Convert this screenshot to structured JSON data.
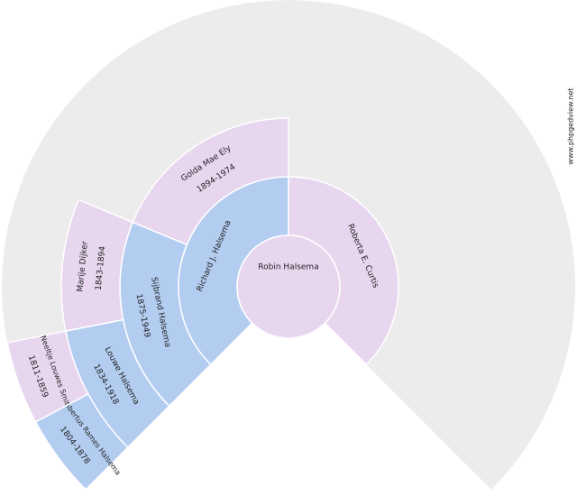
{
  "root": {
    "name": "Robin Halsema"
  },
  "persons": [
    {
      "name": "Richard J. Halsema",
      "dates": null,
      "ring": 1,
      "slot": 0
    },
    {
      "name": "Roberta E. Curtis",
      "dates": null,
      "ring": 1,
      "slot": 1
    },
    {
      "name": "Sijbrand Halsema",
      "dates": "1875-1949",
      "ring": 2,
      "slot": 0
    },
    {
      "name": "Golda Mae Ely",
      "dates": "1894-1974",
      "ring": 2,
      "slot": 1
    },
    {
      "name": "Louwe Halsema",
      "dates": "1834-1918",
      "ring": 3,
      "slot": 0
    },
    {
      "name": "Marije Dijker",
      "dates": "1843-1894",
      "ring": 3,
      "slot": 1
    },
    {
      "name": "Lambertus Rames Halsema",
      "dates": "1804-1878",
      "ring": 4,
      "slot": 0
    },
    {
      "name": "Neeltje Louwes Smit",
      "dates": "1811-1859",
      "ring": 4,
      "slot": 1
    }
  ],
  "watermark": "www.phpgedview.net"
}
